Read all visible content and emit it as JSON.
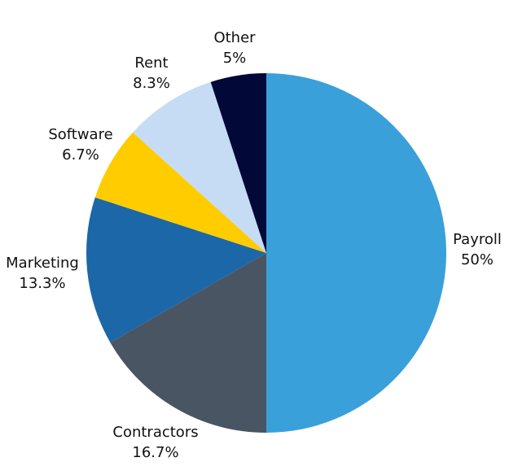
{
  "chart_data": {
    "type": "pie",
    "title": "",
    "legend": "none",
    "start_angle_deg": 0,
    "direction": "clockwise",
    "slices": [
      {
        "label": "Payroll",
        "value": 50,
        "value_label": "50%",
        "color": "#3aa0d9"
      },
      {
        "label": "Contractors",
        "value": 16.7,
        "value_label": "16.7%",
        "color": "#4a5563"
      },
      {
        "label": "Marketing",
        "value": 13.3,
        "value_label": "13.3%",
        "color": "#1b67a8"
      },
      {
        "label": "Software",
        "value": 6.7,
        "value_label": "6.7%",
        "color": "#ffcc00"
      },
      {
        "label": "Rent",
        "value": 8.3,
        "value_label": "8.3%",
        "color": "#c6dcf5"
      },
      {
        "label": "Other",
        "value": 5,
        "value_label": "5%",
        "color": "#020838"
      }
    ]
  }
}
